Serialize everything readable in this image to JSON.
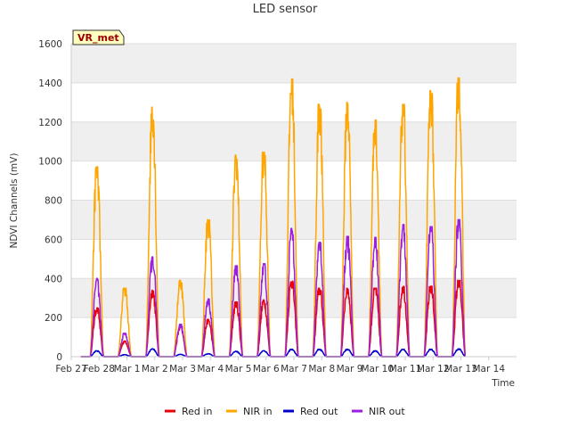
{
  "chart_data": {
    "type": "line",
    "title": "LED sensor",
    "xlabel": "Time",
    "ylabel": "NDVI Channels (mV)",
    "ylim": [
      0,
      1600
    ],
    "yticks": [
      0,
      200,
      400,
      600,
      800,
      1000,
      1200,
      1400,
      1600
    ],
    "xlim": [
      0,
      16
    ],
    "xtick_labels": [
      "Feb 27",
      "Feb 28",
      "Mar 1",
      "Mar 2",
      "Mar 3",
      "Mar 4",
      "Mar 5",
      "Mar 6",
      "Mar 7",
      "Mar 8",
      "Mar 9",
      "Mar 10",
      "Mar 11",
      "Mar 12",
      "Mar 13",
      "Mar 14"
    ],
    "badge": "VR_met",
    "legend_position": "bottom",
    "day_centers": [
      0.92,
      1.92,
      2.92,
      3.92,
      4.92,
      5.92,
      6.92,
      7.92,
      8.92,
      9.92,
      10.92,
      11.92,
      12.92,
      13.92
    ],
    "series": [
      {
        "name": "Red in",
        "color": "#e8000b",
        "daily_peaks": [
          250,
          80,
          340,
          150,
          190,
          280,
          290,
          390,
          350,
          350,
          350,
          360,
          360,
          390
        ]
      },
      {
        "name": "NIR in",
        "color": "#ffa500",
        "daily_peaks": [
          970,
          350,
          1280,
          390,
          700,
          1030,
          1045,
          1420,
          1290,
          1300,
          1210,
          1290,
          1360,
          1425
        ]
      },
      {
        "name": "Red out",
        "color": "#0000cc",
        "daily_peaks": [
          30,
          10,
          40,
          12,
          15,
          28,
          30,
          38,
          38,
          38,
          30,
          38,
          38,
          40
        ]
      },
      {
        "name": "NIR out",
        "color": "#9a1fe0",
        "daily_peaks": [
          400,
          120,
          510,
          165,
          295,
          465,
          475,
          655,
          585,
          615,
          610,
          675,
          665,
          700
        ]
      }
    ]
  }
}
